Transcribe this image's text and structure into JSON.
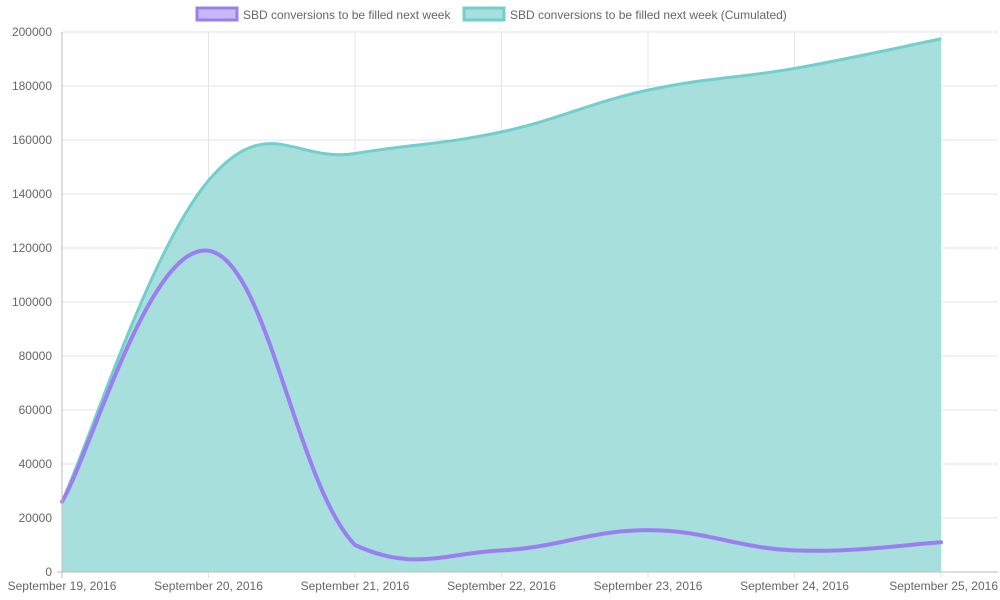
{
  "chart_data": {
    "type": "line",
    "title": "",
    "xlabel": "",
    "ylabel": "",
    "categories": [
      "September 19, 2016",
      "September 20, 2016",
      "September 21, 2016",
      "September 22, 2016",
      "September 23, 2016",
      "September 24, 2016",
      "September 25, 2016"
    ],
    "ylim": [
      0,
      200000
    ],
    "yticks": [
      0,
      20000,
      40000,
      60000,
      80000,
      100000,
      120000,
      140000,
      160000,
      180000,
      200000
    ],
    "grid": true,
    "legend_position": "top",
    "series": [
      {
        "name": "SBD conversions to be filled next week",
        "style": "line",
        "color": "#9b7ff0",
        "fill": "#c9b8f7",
        "values": [
          26000,
          119000,
          10000,
          8000,
          15500,
          8000,
          11000
        ]
      },
      {
        "name": "SBD conversions to be filled next week (Cumulated)",
        "style": "area",
        "color": "#72cfcb",
        "fill": "#a7dfdd",
        "values": [
          26000,
          145000,
          155000,
          163000,
          178500,
          186500,
          197500
        ]
      }
    ]
  }
}
